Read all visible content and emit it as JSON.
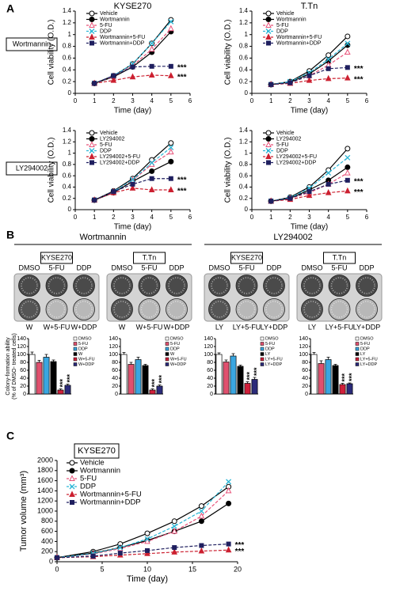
{
  "panels": {
    "a": "A",
    "b": "B",
    "c": "C"
  },
  "row_labels": [
    "Wortmannin",
    "LY294002"
  ],
  "b_groups": [
    "Wortmannin",
    "LY294002"
  ],
  "plates": [
    {
      "cell": "KYSE270",
      "top": [
        "DMSO",
        "5-FU",
        "DDP"
      ],
      "bottom": [
        "W",
        "W+5-FU",
        "W+DDP"
      ]
    },
    {
      "cell": "T.Tn",
      "top": [
        "DMSO",
        "5-FU",
        "DDP"
      ],
      "bottom": [
        "W",
        "W+5-FU",
        "W+DDP"
      ]
    },
    {
      "cell": "KYSE270",
      "top": [
        "DMSO",
        "5-FU",
        "DDP"
      ],
      "bottom": [
        "LY",
        "LY+5-FU",
        "LY+DDP"
      ]
    },
    {
      "cell": "T.Tn",
      "top": [
        "DMSO",
        "5-FU",
        "DDP"
      ],
      "bottom": [
        "LY",
        "LY+5-FU",
        "LY+DDP"
      ]
    }
  ],
  "chart_data": [
    {
      "type": "line",
      "title": "KYSE270",
      "xlabel": "Time (day)",
      "ylabel": "Cell viability (O.D.)",
      "x": [
        1,
        2,
        3,
        4,
        5
      ],
      "xlim": [
        0,
        6
      ],
      "xticks": [
        0,
        1,
        2,
        3,
        4,
        5,
        6
      ],
      "ylim": [
        0,
        1.4
      ],
      "yticks": [
        0,
        0.2,
        0.4,
        0.6,
        0.8,
        1,
        1.2,
        1.4
      ],
      "annotations": [
        "***",
        "***"
      ],
      "series": [
        {
          "name": "Vehicle",
          "color": "#000000",
          "marker": "circle-open",
          "dashed": false,
          "values": [
            0.17,
            0.3,
            0.5,
            0.85,
            1.25
          ]
        },
        {
          "name": "Wortmannin",
          "color": "#000000",
          "marker": "circle",
          "dashed": false,
          "values": [
            0.17,
            0.28,
            0.45,
            0.7,
            1.05
          ]
        },
        {
          "name": "5-FU",
          "color": "#e8537a",
          "marker": "triangle-open",
          "dashed": true,
          "values": [
            0.17,
            0.29,
            0.47,
            0.75,
            1.1
          ]
        },
        {
          "name": "DDP",
          "color": "#2bb6d6",
          "marker": "x",
          "dashed": true,
          "values": [
            0.17,
            0.3,
            0.5,
            0.85,
            1.22
          ]
        },
        {
          "name": "Wortmannin+5-FU",
          "color": "#cc2030",
          "marker": "triangle",
          "dashed": true,
          "values": [
            0.17,
            0.22,
            0.28,
            0.31,
            0.3
          ]
        },
        {
          "name": "Wortmannin+DDP",
          "color": "#1f1f5f",
          "marker": "square",
          "dashed": true,
          "values": [
            0.17,
            0.3,
            0.45,
            0.46,
            0.46
          ]
        }
      ]
    },
    {
      "type": "line",
      "title": "T.Tn",
      "xlabel": "Time (day)",
      "ylabel": "Cell viability (O.D.)",
      "x": [
        1,
        2,
        3,
        4,
        5
      ],
      "xlim": [
        0,
        6
      ],
      "xticks": [
        0,
        1,
        2,
        3,
        4,
        5,
        6
      ],
      "ylim": [
        0,
        1.4
      ],
      "yticks": [
        0,
        0.2,
        0.4,
        0.6,
        0.8,
        1,
        1.2,
        1.4
      ],
      "annotations": [
        "***",
        "***"
      ],
      "series": [
        {
          "name": "Vehicle",
          "color": "#000000",
          "marker": "circle-open",
          "dashed": false,
          "values": [
            0.15,
            0.2,
            0.38,
            0.65,
            0.97
          ]
        },
        {
          "name": "Wortmannin",
          "color": "#000000",
          "marker": "circle",
          "dashed": false,
          "values": [
            0.15,
            0.19,
            0.33,
            0.55,
            0.82
          ]
        },
        {
          "name": "5-FU",
          "color": "#e8537a",
          "marker": "triangle-open",
          "dashed": true,
          "values": [
            0.15,
            0.18,
            0.3,
            0.48,
            0.7
          ]
        },
        {
          "name": "DDP",
          "color": "#2bb6d6",
          "marker": "x",
          "dashed": true,
          "values": [
            0.15,
            0.2,
            0.35,
            0.58,
            0.85
          ]
        },
        {
          "name": "Wortmannin+5-FU",
          "color": "#cc2030",
          "marker": "triangle",
          "dashed": true,
          "values": [
            0.15,
            0.17,
            0.22,
            0.25,
            0.26
          ]
        },
        {
          "name": "Wortmannin+DDP",
          "color": "#1f1f5f",
          "marker": "square",
          "dashed": true,
          "values": [
            0.15,
            0.18,
            0.3,
            0.42,
            0.44
          ]
        }
      ]
    },
    {
      "type": "line",
      "xlabel": "Time (day)",
      "ylabel": "Cell viability (O.D.)",
      "x": [
        1,
        2,
        3,
        4,
        5
      ],
      "xlim": [
        0,
        6
      ],
      "xticks": [
        0,
        1,
        2,
        3,
        4,
        5,
        6
      ],
      "ylim": [
        0,
        1.4
      ],
      "yticks": [
        0,
        0.2,
        0.4,
        0.6,
        0.8,
        1,
        1.2,
        1.4
      ],
      "annotations": [
        "***",
        "***"
      ],
      "series": [
        {
          "name": "Vehicle",
          "color": "#000000",
          "marker": "circle-open",
          "dashed": false,
          "values": [
            0.17,
            0.33,
            0.55,
            0.88,
            1.18
          ]
        },
        {
          "name": "LY294002",
          "color": "#000000",
          "marker": "circle",
          "dashed": false,
          "values": [
            0.17,
            0.3,
            0.5,
            0.68,
            0.85
          ]
        },
        {
          "name": "5-FU",
          "color": "#e8537a",
          "marker": "triangle-open",
          "dashed": true,
          "values": [
            0.17,
            0.32,
            0.52,
            0.8,
            1.02
          ]
        },
        {
          "name": "DDP",
          "color": "#2bb6d6",
          "marker": "x",
          "dashed": true,
          "values": [
            0.17,
            0.32,
            0.53,
            0.83,
            1.1
          ]
        },
        {
          "name": "LY294002+5-FU",
          "color": "#cc2030",
          "marker": "triangle",
          "dashed": true,
          "values": [
            0.17,
            0.3,
            0.38,
            0.35,
            0.35
          ]
        },
        {
          "name": "LY294002+DDP",
          "color": "#1f1f5f",
          "marker": "square",
          "dashed": true,
          "values": [
            0.17,
            0.32,
            0.45,
            0.55,
            0.55
          ]
        }
      ]
    },
    {
      "type": "line",
      "xlabel": "Time (day)",
      "ylabel": "Cell viability (O.D.)",
      "x": [
        1,
        2,
        3,
        4,
        5
      ],
      "xlim": [
        0,
        6
      ],
      "xticks": [
        0,
        1,
        2,
        3,
        4,
        5,
        6
      ],
      "ylim": [
        0,
        1.4
      ],
      "yticks": [
        0,
        0.2,
        0.4,
        0.6,
        0.8,
        1,
        1.2,
        1.4
      ],
      "annotations": [
        "***",
        "***"
      ],
      "series": [
        {
          "name": "Vehicle",
          "color": "#000000",
          "marker": "circle-open",
          "dashed": false,
          "values": [
            0.15,
            0.22,
            0.4,
            0.7,
            1.08
          ]
        },
        {
          "name": "LY294002",
          "color": "#000000",
          "marker": "circle",
          "dashed": false,
          "values": [
            0.15,
            0.2,
            0.35,
            0.52,
            0.75
          ]
        },
        {
          "name": "5-FU",
          "color": "#e8537a",
          "marker": "triangle-open",
          "dashed": true,
          "values": [
            0.15,
            0.2,
            0.3,
            0.45,
            0.65
          ]
        },
        {
          "name": "DDP",
          "color": "#2bb6d6",
          "marker": "x",
          "dashed": true,
          "values": [
            0.15,
            0.21,
            0.38,
            0.65,
            0.92
          ]
        },
        {
          "name": "LY294002+5-FU",
          "color": "#cc2030",
          "marker": "triangle",
          "dashed": true,
          "values": [
            0.15,
            0.18,
            0.25,
            0.3,
            0.33
          ]
        },
        {
          "name": "LY294002+DDP",
          "color": "#1f1f5f",
          "marker": "square",
          "dashed": true,
          "values": [
            0.15,
            0.2,
            0.32,
            0.45,
            0.52
          ]
        }
      ]
    },
    {
      "type": "bar",
      "ylabel": [
        "Colony-formation ability",
        "(% of DMSO- treated cells)"
      ],
      "categories": [
        "DMSO",
        "5-FU",
        "DDP",
        "W",
        "W+5-FU",
        "W+DDP"
      ],
      "values": [
        100,
        80,
        93,
        82,
        10,
        22
      ],
      "errors": [
        6,
        5,
        7,
        4,
        3,
        3
      ],
      "colors": [
        "#ffffff",
        "#e0506e",
        "#3aa6e0",
        "#000000",
        "#d0203a",
        "#2b2b7a"
      ],
      "ylim": [
        0,
        140
      ],
      "yticks": [
        0,
        20,
        40,
        60,
        80,
        100,
        120,
        140
      ],
      "annotations": [
        "***",
        "***"
      ]
    },
    {
      "type": "bar",
      "categories": [
        "DMSO",
        "5-FU",
        "DDP",
        "W",
        "W+5-FU",
        "W+DDP"
      ],
      "values": [
        100,
        75,
        87,
        72,
        10,
        20
      ],
      "errors": [
        5,
        5,
        6,
        3,
        3,
        3
      ],
      "colors": [
        "#ffffff",
        "#e0506e",
        "#3aa6e0",
        "#000000",
        "#d0203a",
        "#2b2b7a"
      ],
      "ylim": [
        0,
        140
      ],
      "yticks": [
        0,
        20,
        40,
        60,
        80,
        100,
        120,
        140
      ],
      "annotations": [
        "***",
        "***"
      ]
    },
    {
      "type": "bar",
      "categories": [
        "DMSO",
        "5-FU",
        "DDP",
        "LY",
        "LY+5-FU",
        "LY+DDP"
      ],
      "values": [
        100,
        81,
        96,
        70,
        27,
        37
      ],
      "errors": [
        4,
        5,
        6,
        3,
        4,
        5
      ],
      "colors": [
        "#ffffff",
        "#e0506e",
        "#3aa6e0",
        "#000000",
        "#d0203a",
        "#2b2b7a"
      ],
      "ylim": [
        0,
        140
      ],
      "yticks": [
        0,
        20,
        40,
        60,
        80,
        100,
        120,
        140
      ],
      "annotations": [
        "***",
        "***"
      ]
    },
    {
      "type": "bar",
      "categories": [
        "DMSO",
        "5-FU",
        "DDP",
        "LY",
        "LY+5-FU",
        "LY+DDP"
      ],
      "values": [
        100,
        77,
        87,
        72,
        24,
        26
      ],
      "errors": [
        5,
        7,
        6,
        3,
        3,
        2
      ],
      "colors": [
        "#ffffff",
        "#e0506e",
        "#3aa6e0",
        "#000000",
        "#d0203a",
        "#2b2b7a"
      ],
      "ylim": [
        0,
        140
      ],
      "yticks": [
        0,
        20,
        40,
        60,
        80,
        100,
        120,
        140
      ],
      "annotations": [
        "***",
        "***"
      ]
    },
    {
      "type": "line",
      "title": "KYSE270",
      "xlabel": "Time (day)",
      "ylabel": "Tumor volume (mm³)",
      "x": [
        0,
        4,
        7,
        10,
        13,
        16,
        19
      ],
      "xlim": [
        0,
        20
      ],
      "xticks": [
        0,
        5,
        10,
        15,
        20
      ],
      "ylim": [
        0,
        2000
      ],
      "yticks": [
        0,
        200,
        400,
        600,
        800,
        1000,
        1200,
        1400,
        1600,
        1800,
        2000
      ],
      "annotations": [
        "***",
        "***"
      ],
      "series": [
        {
          "name": "Vehicle",
          "color": "#000000",
          "marker": "circle-open",
          "dashed": false,
          "values": [
            80,
            200,
            350,
            560,
            800,
            1100,
            1480
          ]
        },
        {
          "name": "Wortmannin",
          "color": "#000000",
          "marker": "circle",
          "dashed": false,
          "values": [
            80,
            170,
            280,
            420,
            600,
            800,
            1150
          ]
        },
        {
          "name": "5-FU",
          "color": "#e8537a",
          "marker": "triangle-open",
          "dashed": true,
          "values": [
            80,
            150,
            260,
            400,
            600,
            900,
            1400
          ]
        },
        {
          "name": "DDP",
          "color": "#2bb6d6",
          "marker": "x",
          "dashed": true,
          "values": [
            80,
            160,
            280,
            450,
            700,
            1000,
            1580
          ]
        },
        {
          "name": "Wortmannin+5-FU",
          "color": "#cc2030",
          "marker": "triangle",
          "dashed": true,
          "values": [
            80,
            100,
            130,
            160,
            190,
            210,
            230
          ]
        },
        {
          "name": "Wortmannin+DDP",
          "color": "#1f1f5f",
          "marker": "square",
          "dashed": true,
          "values": [
            80,
            110,
            170,
            220,
            280,
            320,
            350
          ]
        }
      ]
    }
  ]
}
